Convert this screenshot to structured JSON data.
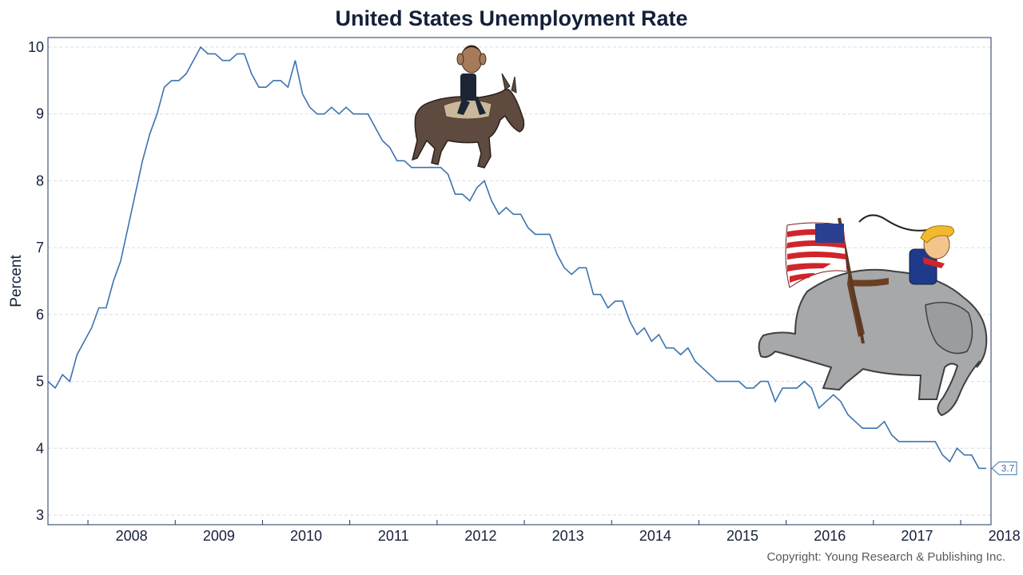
{
  "chart_data": {
    "type": "line",
    "title": "United States Unemployment Rate",
    "ylabel": "Percent",
    "xlabel": "",
    "ylim": [
      3,
      10
    ],
    "yticks": [
      3,
      4,
      5,
      6,
      7,
      8,
      9,
      10
    ],
    "year_labels": [
      "2008",
      "2009",
      "2010",
      "2011",
      "2012",
      "2013",
      "2014",
      "2015",
      "2016",
      "2017",
      "2018"
    ],
    "grid": "horizontal dashed",
    "line_color": "#3b73b0",
    "last_value_label": "3.7",
    "series": [
      {
        "start": "2007-07",
        "frequency": "monthly",
        "values": [
          5.0,
          4.9,
          5.1,
          5.0,
          5.4,
          5.6,
          5.8,
          6.1,
          6.1,
          6.5,
          6.8,
          7.3,
          7.8,
          8.3,
          8.7,
          9.0,
          9.4,
          9.5,
          9.5,
          9.6,
          9.8,
          10.0,
          9.9,
          9.9,
          9.8,
          9.8,
          9.9,
          9.9,
          9.6,
          9.4,
          9.4,
          9.5,
          9.5,
          9.4,
          9.8,
          9.3,
          9.1,
          9.0,
          9.0,
          9.1,
          9.0,
          9.1,
          9.0,
          9.0,
          9.0,
          8.8,
          8.6,
          8.5,
          8.3,
          8.3,
          8.2,
          8.2,
          8.2,
          8.2,
          8.2,
          8.1,
          7.8,
          7.8,
          7.7,
          7.9,
          8.0,
          7.7,
          7.5,
          7.6,
          7.5,
          7.5,
          7.3,
          7.2,
          7.2,
          7.2,
          6.9,
          6.7,
          6.6,
          6.7,
          6.7,
          6.3,
          6.3,
          6.1,
          6.2,
          6.2,
          5.9,
          5.7,
          5.8,
          5.6,
          5.7,
          5.5,
          5.5,
          5.4,
          5.5,
          5.3,
          5.2,
          5.1,
          5.0,
          5.0,
          5.0,
          5.0,
          4.9,
          4.9,
          5.0,
          5.0,
          4.7,
          4.9,
          4.9,
          4.9,
          5.0,
          4.9,
          4.6,
          4.7,
          4.8,
          4.7,
          4.5,
          4.4,
          4.3,
          4.3,
          4.3,
          4.4,
          4.2,
          4.1,
          4.1,
          4.1,
          4.1,
          4.1,
          4.1,
          3.9,
          3.8,
          4.0,
          3.9,
          3.9,
          3.7,
          3.7
        ]
      }
    ]
  },
  "footer": {
    "copyright": "Copyright: Young Research & Publishing Inc."
  }
}
